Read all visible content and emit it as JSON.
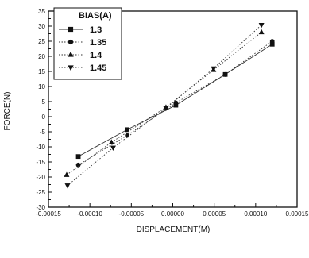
{
  "chart_data": {
    "type": "line",
    "title": "",
    "xlabel": "DISPLACEMENT(M)",
    "ylabel": "FORCE(N)",
    "xlim": [
      -0.00015,
      0.00015
    ],
    "ylim": [
      -30,
      35
    ],
    "xticks": [
      -0.00015,
      -0.0001,
      -5e-05,
      0.0,
      5e-05,
      0.0001,
      0.00015
    ],
    "xtick_labels": [
      "-0.00015",
      "-0.00010",
      "-0.00005",
      "0.00000",
      "0.00005",
      "0.00010",
      "0.00015"
    ],
    "yticks": [
      -30,
      -25,
      -20,
      -15,
      -10,
      -5,
      0,
      5,
      10,
      15,
      20,
      25,
      30,
      35
    ],
    "ytick_labels": [
      "-30",
      "-25",
      "-20",
      "-15",
      "-10",
      "-5",
      "0",
      "5",
      "10",
      "15",
      "20",
      "25",
      "30",
      "35"
    ],
    "grid": false,
    "legend": {
      "title": "BIAS(A)",
      "placement": "top-left"
    },
    "series": [
      {
        "name": "1.3",
        "marker": "square",
        "line": "solid",
        "x": [
          -0.000114,
          -5.52e-05,
          3.7e-06,
          6.33e-05,
          0.00012
        ],
        "y": [
          -13.2,
          -4.3,
          3.8,
          14.0,
          24.0
        ]
      },
      {
        "name": "1.35",
        "marker": "circle",
        "line": "dotted",
        "x": [
          -0.000114,
          -5.5e-05,
          3.7e-06,
          6.33e-05,
          0.00012
        ],
        "y": [
          -16.0,
          -6.2,
          4.6,
          14.0,
          25.0
        ]
      },
      {
        "name": "1.4",
        "marker": "triangle-up",
        "line": "dotted",
        "x": [
          -0.000128,
          -7.4e-05,
          -8.2e-06,
          4.92e-05,
          0.000107
        ],
        "y": [
          -19.3,
          -8.5,
          3.1,
          15.5,
          28.0
        ]
      },
      {
        "name": "1.45",
        "marker": "triangle-down",
        "line": "dotted",
        "x": [
          -0.000127,
          -7.2e-05,
          -8.2e-06,
          4.92e-05,
          0.000107
        ],
        "y": [
          -22.8,
          -10.3,
          2.8,
          16.0,
          30.4
        ]
      }
    ]
  }
}
